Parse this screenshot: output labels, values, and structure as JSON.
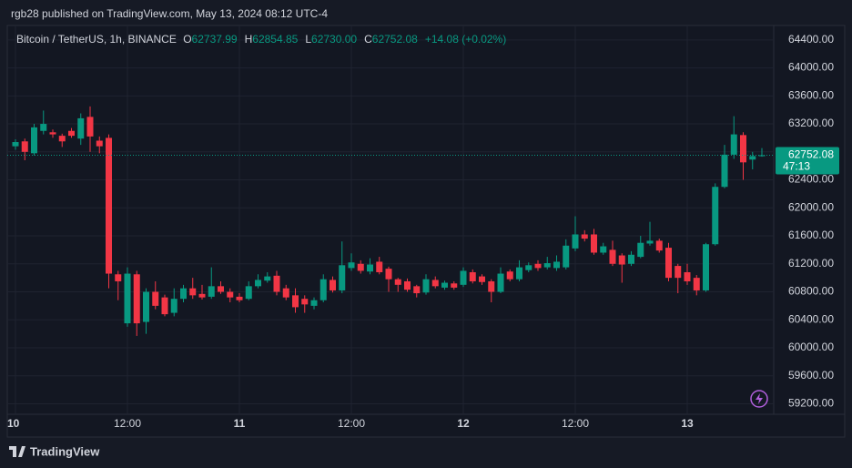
{
  "header": {
    "publisher": "rgb28 published on TradingView.com, May 13, 2024 08:12 UTC-4",
    "symbol": "Bitcoin / TetherUS, 1h, BINANCE",
    "ohlc": [
      {
        "label": "O",
        "value": "62737.99"
      },
      {
        "label": "H",
        "value": "62854.85"
      },
      {
        "label": "L",
        "value": "62730.00"
      },
      {
        "label": "C",
        "value": "62752.08"
      }
    ],
    "change": "+14.08 (+0.02%)"
  },
  "chart_data": {
    "type": "candlestick",
    "categories": [
      "10",
      null,
      null,
      null,
      null,
      null,
      null,
      null,
      null,
      null,
      null,
      null,
      "12:00",
      null,
      null,
      null,
      null,
      null,
      null,
      null,
      null,
      null,
      null,
      null,
      "11",
      null,
      null,
      null,
      null,
      null,
      null,
      null,
      null,
      null,
      null,
      null,
      "12:00",
      null,
      null,
      null,
      null,
      null,
      null,
      null,
      null,
      null,
      null,
      null,
      "12",
      null,
      null,
      null,
      null,
      null,
      null,
      null,
      null,
      null,
      null,
      null,
      "12:00",
      null,
      null,
      null,
      null,
      null,
      null,
      null,
      null,
      null,
      null,
      null,
      "13",
      null,
      null,
      null,
      null,
      null,
      null,
      null,
      null
    ],
    "open": [
      62880,
      62950,
      62780,
      63100,
      63080,
      63030,
      63100,
      62990,
      63300,
      62960,
      63000,
      61050,
      60350,
      61050,
      60370,
      60800,
      60720,
      60500,
      60700,
      60850,
      60770,
      60730,
      60880,
      60800,
      60730,
      60700,
      60880,
      60960,
      61030,
      60850,
      60750,
      60700,
      60600,
      60680,
      60970,
      60820,
      61140,
      61200,
      61090,
      61230,
      61130,
      60980,
      60950,
      60880,
      60790,
      60970,
      60860,
      60920,
      60900,
      61080,
      61020,
      60950,
      60800,
      61090,
      60980,
      61110,
      61200,
      61150,
      61140,
      61150,
      61420,
      61620,
      61620,
      61360,
      61400,
      61320,
      61200,
      61300,
      61490,
      61530,
      61430,
      61170,
      61080,
      61000,
      60820,
      61480,
      62300,
      62760,
      63040,
      62690,
      62737.99
    ],
    "high": [
      62980,
      62990,
      63200,
      63390,
      63120,
      63060,
      63140,
      63350,
      63450,
      63020,
      63050,
      61100,
      61150,
      61100,
      60850,
      60950,
      60760,
      60850,
      60900,
      61000,
      60900,
      61150,
      60950,
      60850,
      60780,
      60950,
      61050,
      61080,
      61100,
      60900,
      60850,
      60750,
      60720,
      61050,
      61020,
      61520,
      61350,
      61250,
      61280,
      61300,
      61160,
      61000,
      60990,
      60900,
      61050,
      61020,
      60960,
      60950,
      61150,
      61120,
      61050,
      60980,
      61150,
      61120,
      61250,
      61220,
      61250,
      61300,
      61320,
      61550,
      61880,
      61680,
      61700,
      61500,
      61530,
      61350,
      61380,
      61600,
      61800,
      61560,
      61500,
      61200,
      61200,
      61040,
      61500,
      62350,
      62900,
      63310,
      63080,
      62800,
      62854.85
    ],
    "low": [
      62830,
      62680,
      62750,
      63050,
      63000,
      62870,
      63000,
      62900,
      62800,
      62780,
      60850,
      60680,
      60300,
      60170,
      60200,
      60550,
      60450,
      60450,
      60650,
      60700,
      60690,
      60700,
      60770,
      60650,
      60650,
      60680,
      60850,
      60930,
      60750,
      60680,
      60500,
      60500,
      60550,
      60650,
      60790,
      60780,
      61100,
      61060,
      61050,
      61050,
      60800,
      60800,
      60800,
      60720,
      60760,
      60850,
      60830,
      60830,
      60870,
      60920,
      60900,
      60650,
      60780,
      60950,
      60950,
      61080,
      61100,
      61120,
      61100,
      61120,
      61380,
      61520,
      61330,
      61330,
      61170,
      60930,
      61170,
      61280,
      61460,
      61360,
      60950,
      60780,
      60900,
      60750,
      60800,
      61460,
      62280,
      62700,
      62400,
      62550,
      62730
    ],
    "close": [
      62940,
      62800,
      63150,
      63200,
      63050,
      62950,
      63030,
      63280,
      63020,
      62880,
      61060,
      60950,
      61060,
      60350,
      60800,
      60600,
      60480,
      60700,
      60850,
      60750,
      60720,
      60880,
      60800,
      60720,
      60680,
      60880,
      60970,
      61020,
      60800,
      60720,
      60580,
      60620,
      60680,
      60980,
      60820,
      61180,
      61220,
      61100,
      61190,
      61080,
      60980,
      60900,
      60830,
      60780,
      60980,
      60880,
      60930,
      60860,
      61100,
      60950,
      60940,
      60800,
      61060,
      60980,
      61150,
      61180,
      61140,
      61210,
      61230,
      61460,
      61620,
      61560,
      61360,
      61450,
      61200,
      61190,
      61330,
      61500,
      61530,
      61390,
      61000,
      61000,
      60950,
      60820,
      61480,
      62300,
      62760,
      63050,
      62650,
      62740,
      62752.08
    ],
    "up_color": "#089981",
    "down_color": "#f23645",
    "ylim": [
      59050,
      64580
    ],
    "yticks": [
      {
        "value": 59200,
        "label": "59200.00"
      },
      {
        "value": 59600,
        "label": "59600.00"
      },
      {
        "value": 60000,
        "label": "60000.00"
      },
      {
        "value": 60400,
        "label": "60400.00"
      },
      {
        "value": 60800,
        "label": "60800.00"
      },
      {
        "value": 61200,
        "label": "61200.00"
      },
      {
        "value": 61600,
        "label": "61600.00"
      },
      {
        "value": 62000,
        "label": "62000.00"
      },
      {
        "value": 62400,
        "label": "62400.00"
      },
      {
        "value": 62800,
        "label": "62800.00"
      },
      {
        "value": 63200,
        "label": "63200.00"
      },
      {
        "value": 63600,
        "label": "63600.00"
      },
      {
        "value": 64000,
        "label": "64000.00"
      },
      {
        "value": 64400,
        "label": "64400.00"
      }
    ],
    "grid": true,
    "last_price": 62752.08,
    "countdown": "47:13",
    "brand": "TradingView"
  }
}
